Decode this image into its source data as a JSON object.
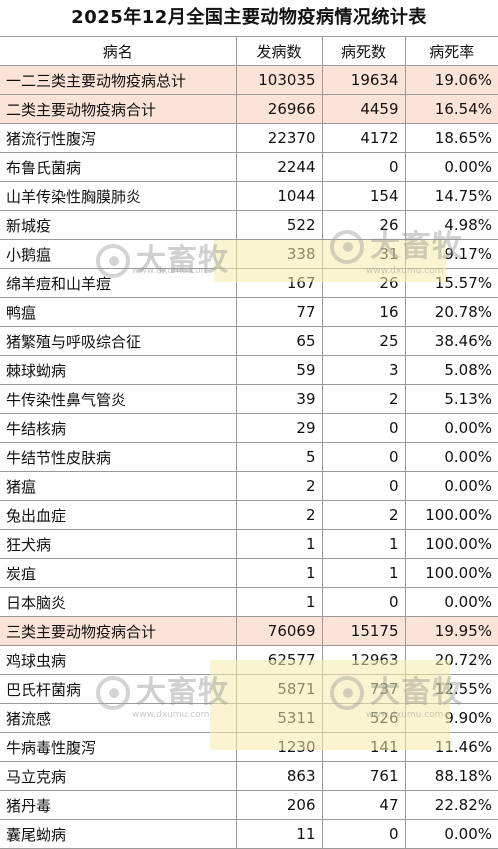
{
  "title": "2025年12月全国主要动物疫病情况统计表",
  "headers": [
    "病名",
    "发病数",
    "病死数",
    "病死率"
  ],
  "rows": [
    {
      "name": "一二三类主要动物疫病总计",
      "cases": "103035",
      "deaths": "19634",
      "rate": "19.06%",
      "total": true
    },
    {
      "name": "二类主要动物疫病合计",
      "cases": "26966",
      "deaths": "4459",
      "rate": "16.54%",
      "total": true
    },
    {
      "name": "猪流行性腹泻",
      "cases": "22370",
      "deaths": "4172",
      "rate": "18.65%"
    },
    {
      "name": "布鲁氏菌病",
      "cases": "2244",
      "deaths": "0",
      "rate": "0.00%"
    },
    {
      "name": "山羊传染性胸膜肺炎",
      "cases": "1044",
      "deaths": "154",
      "rate": "14.75%"
    },
    {
      "name": "新城疫",
      "cases": "522",
      "deaths": "26",
      "rate": "4.98%"
    },
    {
      "name": "小鹅瘟",
      "cases": "338",
      "deaths": "31",
      "rate": "9.17%"
    },
    {
      "name": "绵羊痘和山羊痘",
      "cases": "167",
      "deaths": "26",
      "rate": "15.57%"
    },
    {
      "name": "鸭瘟",
      "cases": "77",
      "deaths": "16",
      "rate": "20.78%"
    },
    {
      "name": "猪繁殖与呼吸综合征",
      "cases": "65",
      "deaths": "25",
      "rate": "38.46%"
    },
    {
      "name": "棘球蚴病",
      "cases": "59",
      "deaths": "3",
      "rate": "5.08%"
    },
    {
      "name": "牛传染性鼻气管炎",
      "cases": "39",
      "deaths": "2",
      "rate": "5.13%"
    },
    {
      "name": "牛结核病",
      "cases": "29",
      "deaths": "0",
      "rate": "0.00%"
    },
    {
      "name": "牛结节性皮肤病",
      "cases": "5",
      "deaths": "0",
      "rate": "0.00%"
    },
    {
      "name": "猪瘟",
      "cases": "2",
      "deaths": "0",
      "rate": "0.00%"
    },
    {
      "name": "兔出血症",
      "cases": "2",
      "deaths": "2",
      "rate": "100.00%"
    },
    {
      "name": "狂犬病",
      "cases": "1",
      "deaths": "1",
      "rate": "100.00%"
    },
    {
      "name": "炭疽",
      "cases": "1",
      "deaths": "1",
      "rate": "100.00%"
    },
    {
      "name": "日本脑炎",
      "cases": "1",
      "deaths": "0",
      "rate": "0.00%"
    },
    {
      "name": "三类主要动物疫病合计",
      "cases": "76069",
      "deaths": "15175",
      "rate": "19.95%",
      "total": true
    },
    {
      "name": "鸡球虫病",
      "cases": "62577",
      "deaths": "12963",
      "rate": "20.72%"
    },
    {
      "name": "巴氏杆菌病",
      "cases": "5871",
      "deaths": "737",
      "rate": "12.55%"
    },
    {
      "name": "猪流感",
      "cases": "5311",
      "deaths": "526",
      "rate": "9.90%"
    },
    {
      "name": "牛病毒性腹泻",
      "cases": "1230",
      "deaths": "141",
      "rate": "11.46%"
    },
    {
      "name": "马立克病",
      "cases": "863",
      "deaths": "761",
      "rate": "88.18%"
    },
    {
      "name": "猪丹毒",
      "cases": "206",
      "deaths": "47",
      "rate": "22.82%"
    },
    {
      "name": "囊尾蚴病",
      "cases": "11",
      "deaths": "0",
      "rate": "0.00%"
    }
  ],
  "watermark": {
    "brand": "大畜牧",
    "url": "www.dxumu.com"
  }
}
